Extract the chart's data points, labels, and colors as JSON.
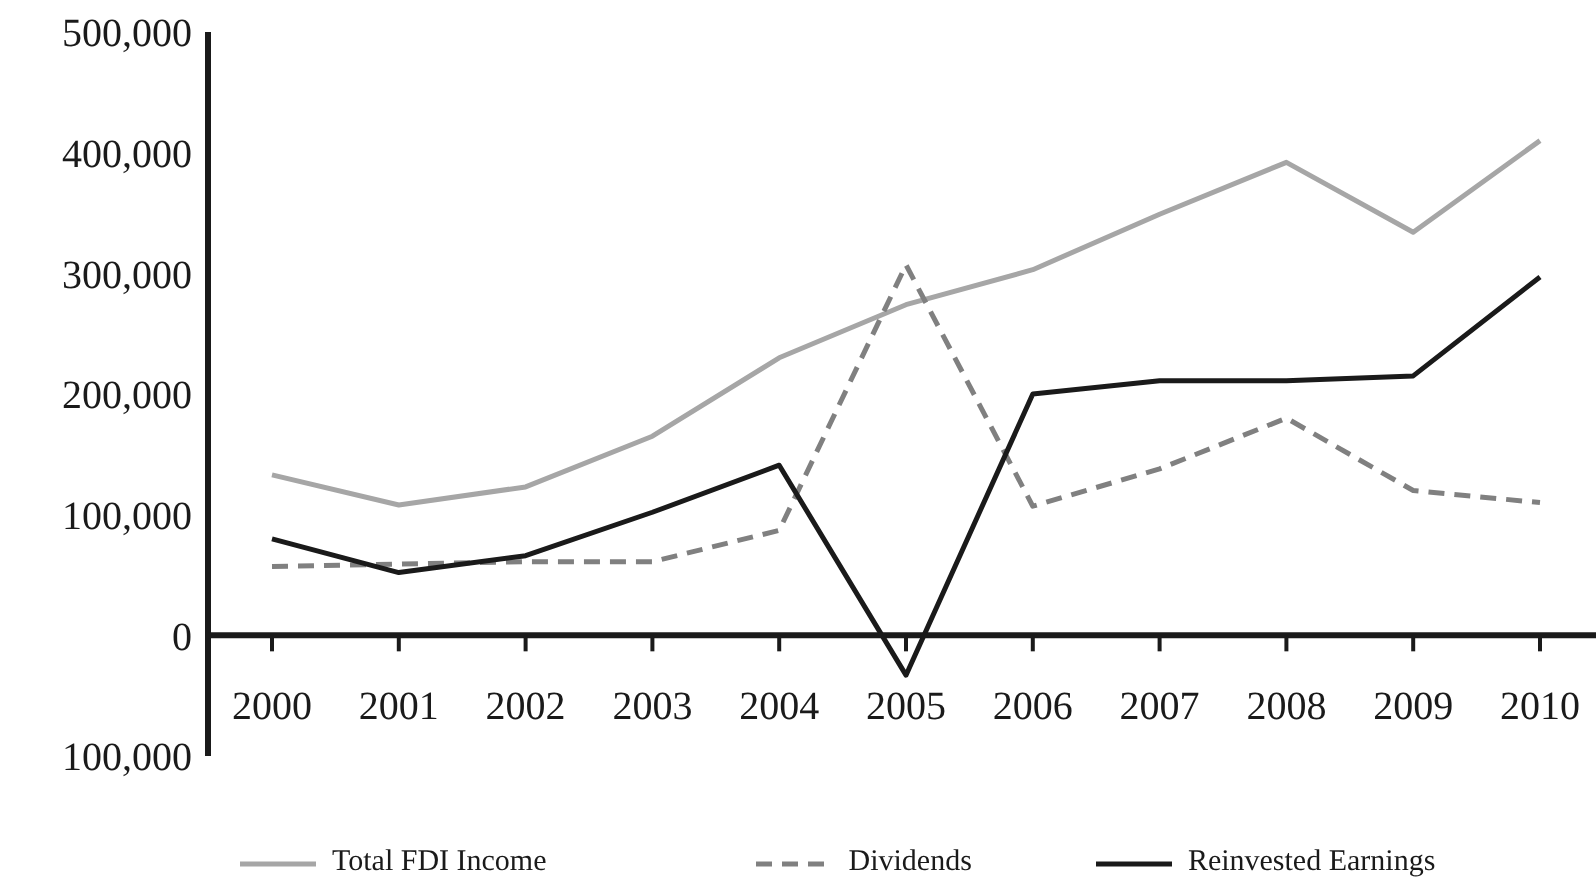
{
  "chart_data": {
    "type": "line",
    "categories": [
      "2000",
      "2001",
      "2002",
      "2003",
      "2004",
      "2005",
      "2006",
      "2007",
      "2008",
      "2009",
      "2010"
    ],
    "series": [
      {
        "name": "Total FDI Income",
        "color": "#a6a6a6",
        "line_style": "solid",
        "values": [
          133000,
          108000,
          123000,
          165000,
          230000,
          274000,
          303000,
          349000,
          392000,
          334000,
          410000
        ]
      },
      {
        "name": "Dividends",
        "color": "#808080",
        "line_style": "dashed",
        "values": [
          57000,
          59000,
          61000,
          61000,
          87000,
          307000,
          107000,
          138000,
          180000,
          120000,
          110000
        ]
      },
      {
        "name": "Reinvested Earnings",
        "color": "#1a1a1a",
        "line_style": "solid",
        "values": [
          80000,
          52000,
          66000,
          102000,
          141000,
          -33000,
          200000,
          211000,
          211000,
          215000,
          297000
        ]
      }
    ],
    "ylim": [
      -100000,
      500000
    ],
    "yticks": [
      {
        "value": -100000,
        "label": "100,000"
      },
      0,
      {
        "value": 100000,
        "label": "100,000"
      },
      {
        "value": 200000,
        "label": "200,000"
      },
      {
        "value": 300000,
        "label": "300,000"
      },
      {
        "value": 400000,
        "label": "400,000"
      },
      {
        "value": 500000,
        "label": "500,000"
      }
    ],
    "legend": "bottom",
    "marker": "none"
  }
}
